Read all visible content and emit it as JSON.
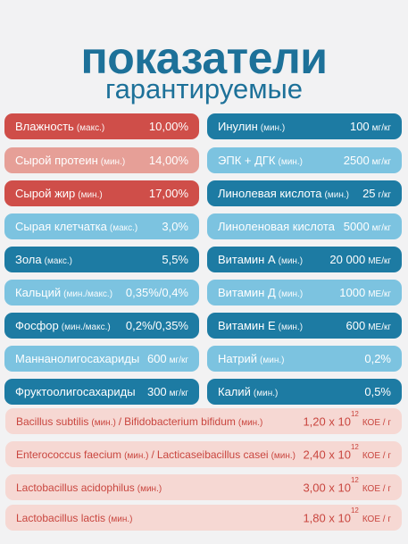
{
  "header": {
    "title": "показатели",
    "subtitle": "гарантируемые"
  },
  "left": [
    {
      "name": "Влажность",
      "qual": "(макс.)",
      "value": "10,00%",
      "unit": "",
      "color": "#cf4e49"
    },
    {
      "name": "Сырой протеин",
      "qual": "(мин.)",
      "value": "14,00%",
      "unit": "",
      "color": "#e69f97"
    },
    {
      "name": "Сырой жир",
      "qual": "(мин.)",
      "value": "17,00%",
      "unit": "",
      "color": "#cf4e49"
    },
    {
      "name": "Сырая клетчатка",
      "qual": "(макс.)",
      "value": "3,0%",
      "unit": "",
      "color": "#7cc3e0"
    },
    {
      "name": "Зола",
      "qual": "(макс.)",
      "value": "5,5%",
      "unit": "",
      "color": "#1d7ba3"
    },
    {
      "name": "Кальций",
      "qual": "(мин./макс.)",
      "value": "0,35%/0,4%",
      "unit": "",
      "color": "#7cc3e0"
    },
    {
      "name": "Фосфор",
      "qual": "(мин./макс.)",
      "value": "0,2%/0,35%",
      "unit": "",
      "color": "#1d7ba3"
    },
    {
      "name": "Маннанолигосахариды",
      "qual": "",
      "value": "600",
      "unit": "мг/кг",
      "color": "#7cc3e0"
    },
    {
      "name": "Фруктоолигосахариды",
      "qual": "",
      "value": "300",
      "unit": "мг/кг",
      "color": "#1d7ba3"
    }
  ],
  "right": [
    {
      "name": "Инулин",
      "qual": "(мин.)",
      "value": "100",
      "unit": "мг/кг",
      "color": "#1d7ba3"
    },
    {
      "name": "ЭПК + ДГК",
      "qual": "(мин.)",
      "value": "2500",
      "unit": "мг/кг",
      "color": "#7cc3e0"
    },
    {
      "name": "Линолевая кислота",
      "qual": "(мин.)",
      "value": "25",
      "unit": "г/кг",
      "color": "#1d7ba3"
    },
    {
      "name": "Линоленовая кислота",
      "qual": "",
      "value": "5000",
      "unit": "мг/кг",
      "color": "#7cc3e0"
    },
    {
      "name": "Витамин А",
      "qual": "(мин.)",
      "value": "20 000",
      "unit": "МЕ/кг",
      "color": "#1d7ba3"
    },
    {
      "name": "Витамин Д",
      "qual": "(мин.)",
      "value": "1000",
      "unit": "МЕ/кг",
      "color": "#7cc3e0"
    },
    {
      "name": "Витамин Е",
      "qual": "(мин.)",
      "value": "600",
      "unit": "МЕ/кг",
      "color": "#1d7ba3"
    },
    {
      "name": "Натрий",
      "qual": "(мин.)",
      "value": "0,2%",
      "unit": "",
      "color": "#7cc3e0"
    },
    {
      "name": "Калий",
      "qual": "(мин.)",
      "value": "0,5%",
      "unit": "",
      "color": "#1d7ba3"
    }
  ],
  "bacteria": [
    {
      "name1": "Bacillus subtilis",
      "qual1": "(мин.)",
      "sep": "/",
      "name2": "Bifidobacterium bifidum",
      "qual2": "(мин.)",
      "mantissa": "1,20 x 10",
      "exp": "12",
      "unit": "КОЕ / г"
    },
    {
      "name1": "Enterococcus faecium",
      "qual1": "(мин.)",
      "sep": "/",
      "name2": "Lacticaseibacillus casei",
      "qual2": "(мин.)",
      "mantissa": "2,40 x 10",
      "exp": "12",
      "unit": "КОЕ / г"
    },
    {
      "name1": "Lactobacillus acidophilus",
      "qual1": "(мин.)",
      "sep": "",
      "name2": "",
      "qual2": "",
      "mantissa": "3,00 x 10",
      "exp": "12",
      "unit": "КОЕ / г"
    },
    {
      "name1": "Lactobacillus lactis",
      "qual1": "(мин.)",
      "sep": "",
      "name2": "",
      "qual2": "",
      "mantissa": "1,80 x 10",
      "exp": "12",
      "unit": "КОЕ / г"
    }
  ]
}
